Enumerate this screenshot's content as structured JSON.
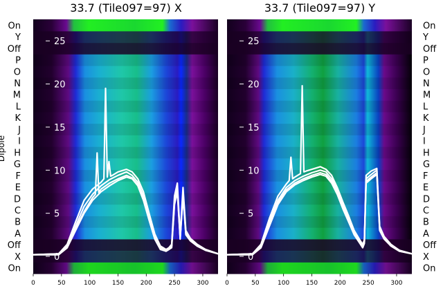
{
  "chart_data": {
    "type": "heatmap",
    "row_labels": [
      "On",
      "X",
      "Off",
      "A",
      "B",
      "C",
      "D",
      "E",
      "F",
      "G",
      "H",
      "I",
      "J",
      "K",
      "L",
      "M",
      "N",
      "O",
      "P",
      "Off",
      "Y",
      "On"
    ],
    "ylabel": "Dipole",
    "xlim": [
      0,
      327
    ],
    "x_ticks": [
      0,
      50,
      100,
      150,
      200,
      250,
      300
    ],
    "overlay_ylim": [
      -2,
      27.5
    ],
    "overlay_y_ticks": [
      0,
      5,
      10,
      15,
      20,
      25
    ],
    "colormap": [
      "#0a000f",
      "#3a0050",
      "#7a109a",
      "#1e2bd6",
      "#1aa0e0",
      "#1fc7a8",
      "#10c040",
      "#22ee22"
    ],
    "panels": [
      {
        "title": "33.7 (Tile097=97) X",
        "highlight_rows": [
          1,
          20
        ],
        "series": [
          {
            "x": [
              0,
              45,
              60,
              75,
              90,
              105,
              120,
              135,
              150,
              165,
              175,
              185,
              195,
              205,
              215,
              225,
              235,
              240,
              245,
              250,
              255,
              260,
              265,
              270,
              278,
              290,
              305,
              327
            ],
            "y": [
              0.2,
              0.2,
              1,
              3,
              5,
              6.5,
              7.5,
              8.2,
              8.8,
              9.2,
              9,
              8.2,
              6.5,
              4.2,
              2,
              0.8,
              0.6,
              0.8,
              1,
              6,
              7.5,
              2,
              7,
              2.5,
              1.8,
              1.2,
              0.7,
              0.3
            ]
          },
          {
            "x": [
              0,
              45,
              60,
              75,
              90,
              105,
              120,
              135,
              150,
              165,
              175,
              185,
              195,
              205,
              215,
              225,
              235,
              240,
              245,
              250,
              255,
              260,
              265,
              270,
              278,
              290,
              305,
              327
            ],
            "y": [
              0.2,
              0.3,
              1.2,
              3.5,
              5.8,
              7.2,
              8.2,
              8.9,
              9.4,
              9.8,
              9.4,
              8.6,
              7,
              4.6,
              2.3,
              1,
              0.7,
              0.9,
              1.2,
              6.5,
              8,
              2.2,
              7.5,
              2.8,
              2,
              1.3,
              0.8,
              0.3
            ]
          },
          {
            "x": [
              0,
              45,
              60,
              75,
              90,
              105,
              120,
              125,
              128,
              131,
              134,
              137,
              140,
              150,
              165,
              175,
              185,
              195,
              205,
              215,
              225,
              235,
              240,
              245,
              250,
              255,
              260,
              265,
              270,
              278,
              290,
              305,
              327
            ],
            "y": [
              0.2,
              0.3,
              1.4,
              4,
              6.5,
              7.8,
              8.6,
              9,
              19.5,
              9.2,
              11,
              9.3,
              9.4,
              9.8,
              10.1,
              9.8,
              9,
              7.5,
              5,
              2.6,
              1.2,
              0.8,
              1,
              1.4,
              7,
              8.5,
              2.4,
              8,
              3,
              2.1,
              1.4,
              0.8,
              0.3
            ]
          },
          {
            "x": [
              0,
              45,
              60,
              75,
              90,
              105,
              110,
              113,
              116,
              120,
              135,
              150,
              165,
              175,
              185,
              195,
              205,
              215,
              225,
              235,
              240,
              245,
              250,
              255,
              260,
              265,
              270,
              278,
              290,
              305,
              327
            ],
            "y": [
              0.2,
              0.2,
              1,
              3.2,
              5.2,
              6.8,
              7.2,
              12,
              7.4,
              7.8,
              8.5,
              9,
              9.4,
              9.1,
              8.3,
              6.7,
              4.3,
              2.1,
              0.9,
              0.6,
              0.8,
              1.1,
              6.2,
              7.8,
              2.1,
              7.2,
              2.6,
              1.9,
              1.2,
              0.7,
              0.3
            ]
          }
        ]
      },
      {
        "title": "33.7 (Tile097=97) Y",
        "highlight_rows": [
          1,
          20
        ],
        "series": [
          {
            "x": [
              0,
              45,
              60,
              75,
              90,
              105,
              120,
              135,
              150,
              165,
              175,
              185,
              195,
              205,
              215,
              225,
              235,
              240,
              243,
              246,
              255,
              265,
              270,
              278,
              290,
              305,
              327
            ],
            "y": [
              0.2,
              0.2,
              1,
              3.5,
              6,
              7.5,
              8.3,
              8.8,
              9.2,
              9.5,
              9.3,
              8.5,
              7.2,
              5.5,
              4,
              2.5,
              1.5,
              1,
              1.5,
              8.5,
              9,
              9.5,
              3,
              2,
              1.2,
              0.6,
              0.3
            ]
          },
          {
            "x": [
              0,
              45,
              60,
              75,
              90,
              105,
              120,
              135,
              150,
              165,
              175,
              185,
              195,
              205,
              215,
              225,
              235,
              240,
              243,
              246,
              255,
              265,
              270,
              278,
              290,
              305,
              327
            ],
            "y": [
              0.2,
              0.3,
              1.2,
              4,
              6.5,
              8,
              8.8,
              9.3,
              9.7,
              10,
              9.8,
              9,
              7.7,
              6,
              4.4,
              2.8,
              1.7,
              1.2,
              1.7,
              9,
              9.5,
              10,
              3.3,
              2.2,
              1.3,
              0.7,
              0.3
            ]
          },
          {
            "x": [
              0,
              45,
              60,
              75,
              90,
              105,
              110,
              113,
              116,
              120,
              130,
              133,
              136,
              140,
              150,
              165,
              175,
              185,
              195,
              205,
              215,
              225,
              235,
              240,
              243,
              246,
              255,
              265,
              270,
              278,
              290,
              305,
              327
            ],
            "y": [
              0.2,
              0.3,
              1.4,
              4.4,
              7,
              8.4,
              8.8,
              11.5,
              9,
              9.2,
              9.6,
              19.8,
              9.8,
              9.9,
              10.1,
              10.4,
              10.1,
              9.4,
              8,
              6.3,
              4.7,
              3,
              1.9,
              1.4,
              1.9,
              9.4,
              9.9,
              10.2,
              3.5,
              2.3,
              1.4,
              0.7,
              0.3
            ]
          },
          {
            "x": [
              0,
              45,
              60,
              75,
              90,
              105,
              120,
              135,
              150,
              165,
              175,
              185,
              195,
              205,
              215,
              225,
              235,
              240,
              243,
              246,
              255,
              265,
              270,
              278,
              290,
              305,
              327
            ],
            "y": [
              0.2,
              0.2,
              1.1,
              3.8,
              6.2,
              7.7,
              8.5,
              9,
              9.4,
              9.7,
              9.5,
              8.7,
              7.4,
              5.7,
              4.2,
              2.6,
              1.6,
              1.1,
              1.6,
              8.7,
              9.2,
              9.7,
              3.1,
              2.1,
              1.2,
              0.6,
              0.3
            ]
          }
        ]
      }
    ]
  }
}
